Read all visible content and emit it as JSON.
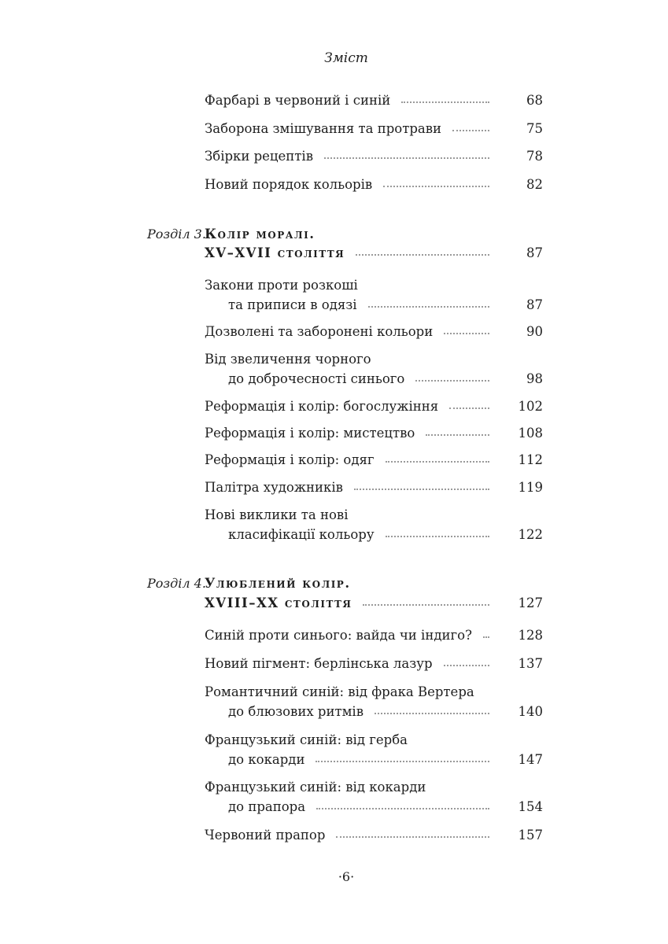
{
  "header": "Зміст",
  "entries": [
    {
      "text": "Фарбарі в червоний і синій",
      "page": "68"
    },
    {
      "text": "Заборона змішування та протрави",
      "page": "75"
    },
    {
      "text": "Збірки рецептів",
      "page": "78"
    },
    {
      "text": "Новий порядок кольорів",
      "page": "82"
    }
  ],
  "chapter3": {
    "label": "Розділ 3.",
    "line1": "Колір моралі.",
    "line2": "XV–XVII століття",
    "page": "87",
    "entries": [
      {
        "line1": "Закони проти розкоші",
        "text": "та приписи в одязі",
        "page": "87"
      },
      {
        "text": "Дозволені та заборонені кольори",
        "page": "90"
      },
      {
        "line1": "Від звеличення чорного",
        "text": "до доброчесності синього",
        "page": "98"
      },
      {
        "text": "Реформація і колір: богослужіння",
        "page": "102"
      },
      {
        "text": "Реформація і колір: мистецтво",
        "page": "108"
      },
      {
        "text": "Реформація і колір: одяг",
        "page": "112"
      },
      {
        "text": "Палітра художників",
        "page": "119"
      },
      {
        "line1": "Нові виклики та нові",
        "text": "класифікації кольору",
        "page": "122"
      }
    ]
  },
  "chapter4": {
    "label": "Розділ 4.",
    "line1": "Улюблений колір.",
    "line2": "XVIII–XX століття",
    "page": "127",
    "entries": [
      {
        "text": "Синій проти синього: вайда чи індиго?",
        "page": "128"
      },
      {
        "text": "Новий пігмент: берлінська лазур",
        "page": "137"
      },
      {
        "line1": "Романтичний синій: від фрака Вертера",
        "text": "до блюзових ритмів",
        "page": "140"
      },
      {
        "line1": "Французький синій: від герба",
        "text": "до кокарди",
        "page": "147"
      },
      {
        "line1": "Французький синій: від кокарди",
        "text": "до прапора",
        "page": "154"
      },
      {
        "text": "Червоний прапор",
        "page": "157"
      }
    ]
  },
  "page_number": "·6·"
}
